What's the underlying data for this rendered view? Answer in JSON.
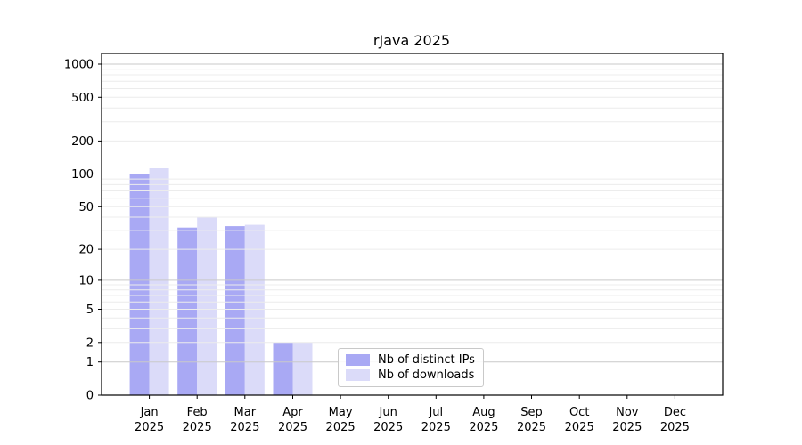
{
  "chart_data": {
    "type": "bar",
    "title": "rJava 2025",
    "xlabel": "",
    "ylabel": "",
    "categories": [
      "Jan 2025",
      "Feb 2025",
      "Mar 2025",
      "Apr 2025",
      "May 2025",
      "Jun 2025",
      "Jul 2025",
      "Aug 2025",
      "Sep 2025",
      "Oct 2025",
      "Nov 2025",
      "Dec 2025"
    ],
    "series": [
      {
        "key": "distinct-ips",
        "name": "Nb of distinct IPs",
        "color": "#a9a9f4",
        "values": [
          101,
          32,
          33,
          2,
          0,
          0,
          0,
          0,
          0,
          0,
          0,
          0
        ]
      },
      {
        "key": "downloads",
        "name": "Nb of downloads",
        "color": "#dbdbf9",
        "values": [
          113,
          40,
          34,
          2,
          0,
          0,
          0,
          0,
          0,
          0,
          0,
          0
        ]
      }
    ],
    "scale": "log1p",
    "ylim": [
      0,
      1000
    ],
    "y_ticks": [
      0,
      1,
      2,
      5,
      10,
      20,
      50,
      100,
      200,
      500,
      1000
    ],
    "grid": {
      "on": true,
      "minor_color": "#ececec",
      "major_color": "#c9c9c9",
      "major_values": [
        1,
        10,
        100,
        1000
      ]
    },
    "legend_position": "lower center",
    "axis_color": "#000000",
    "text_color": "#000000",
    "background": "#ffffff"
  }
}
